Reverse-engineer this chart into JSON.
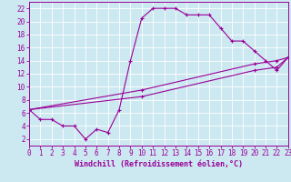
{
  "xlabel": "Windchill (Refroidissement éolien,°C)",
  "bg_color": "#cce8f0",
  "line_color": "#990099",
  "grid_color": "#ffffff",
  "xlim": [
    0,
    23
  ],
  "ylim": [
    1,
    23
  ],
  "xticks": [
    0,
    1,
    2,
    3,
    4,
    5,
    6,
    7,
    8,
    9,
    10,
    11,
    12,
    13,
    14,
    15,
    16,
    17,
    18,
    19,
    20,
    21,
    22,
    23
  ],
  "yticks": [
    2,
    4,
    6,
    8,
    10,
    12,
    14,
    16,
    18,
    20,
    22
  ],
  "line1_x": [
    0,
    1,
    2,
    3,
    4,
    5,
    6,
    7,
    8,
    9,
    10,
    11,
    12,
    13,
    14,
    15,
    16,
    17,
    18,
    19,
    20,
    21,
    22,
    23
  ],
  "line1_y": [
    6.5,
    5,
    5,
    4,
    4,
    2,
    3.5,
    3,
    6.5,
    14,
    20.5,
    22,
    22,
    22,
    21,
    21,
    21,
    19,
    17,
    17,
    15.5,
    14,
    12.5,
    14.5
  ],
  "line2_x": [
    0,
    10,
    20,
    22,
    23
  ],
  "line2_y": [
    6.5,
    9.5,
    13.5,
    14,
    14.5
  ],
  "line3_x": [
    0,
    10,
    20,
    22,
    23
  ],
  "line3_y": [
    6.5,
    8.5,
    12.5,
    13,
    14.5
  ],
  "marker": "+",
  "lw": 0.8,
  "markersize": 3.5,
  "xlabel_fontsize": 6,
  "tick_fontsize": 5.5
}
